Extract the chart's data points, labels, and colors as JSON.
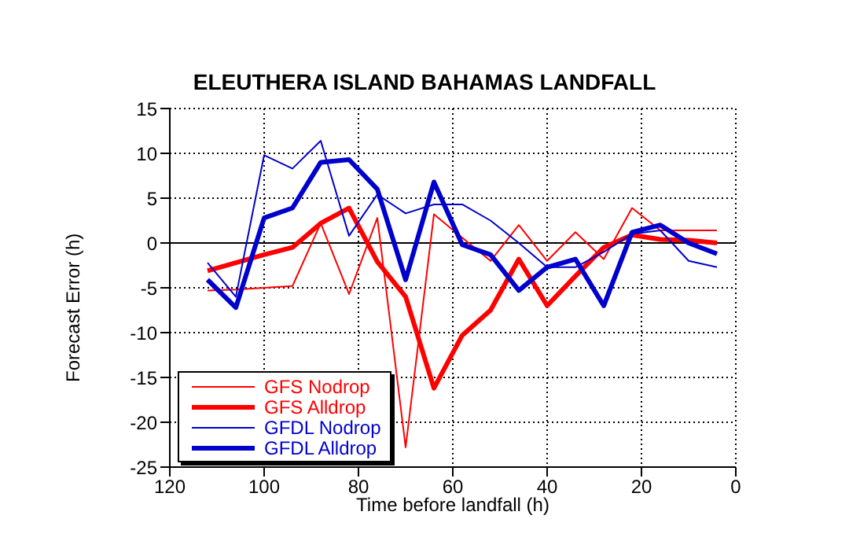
{
  "chart_data": {
    "type": "line",
    "title": "ELEUTHERA ISLAND BAHAMAS LANDFALL",
    "xlabel": "Time before landfall (h)",
    "ylabel": "Forecast Error (h)",
    "x": [
      112,
      106,
      100,
      94,
      88,
      82,
      76,
      70,
      64,
      58,
      52,
      46,
      40,
      34,
      28,
      22,
      16,
      10,
      4
    ],
    "series": [
      {
        "name": "GFS Nodrop",
        "color": "#ff0000",
        "values": [
          -5.3,
          -5.2,
          -5,
          -4.8,
          2.2,
          -5.7,
          2.8,
          -22.8,
          3.2,
          0.6,
          -2,
          2,
          -2,
          1.2,
          -1.8,
          3.9,
          1.4,
          1.4,
          1.4
        ]
      },
      {
        "name": "GFS Alldrop",
        "color": "#ff0000",
        "values": [
          -3.1,
          -2.2,
          -1.3,
          -0.5,
          2.2,
          3.9,
          -2.1,
          -6,
          -16.2,
          -10.3,
          -7.5,
          -1.8,
          -7,
          -3.7,
          -0.5,
          0.9,
          0.4,
          0.3,
          0
        ]
      },
      {
        "name": "GFDL Nodrop",
        "color": "#0000cc",
        "values": [
          -2.2,
          -6,
          9.8,
          8.3,
          11.4,
          0.8,
          5.4,
          3.3,
          4.3,
          4.3,
          2.5,
          0,
          -2.7,
          -2.7,
          -1,
          1,
          1.4,
          -2,
          -2.7
        ]
      },
      {
        "name": "GFDL Alldrop",
        "color": "#0000cc",
        "values": [
          -4.1,
          -7.2,
          2.8,
          3.9,
          9,
          9.3,
          6,
          -4.1,
          6.8,
          -0.2,
          -1.3,
          -5.3,
          -2.7,
          -1.8,
          -7,
          1.2,
          2,
          0,
          -1.2
        ]
      }
    ],
    "xlim": [
      120,
      0
    ],
    "xticks": [
      120,
      100,
      80,
      60,
      40,
      20,
      0
    ],
    "ylim": [
      -25,
      15
    ],
    "yticks": [
      -25,
      -20,
      -15,
      -10,
      -5,
      0,
      5,
      10,
      15
    ],
    "ref_lines": [
      {
        "axis": "y",
        "value": 0,
        "color": "#000000"
      }
    ],
    "grid": true,
    "legend": "bottom left",
    "marker": "none",
    "line_style": "solid"
  }
}
